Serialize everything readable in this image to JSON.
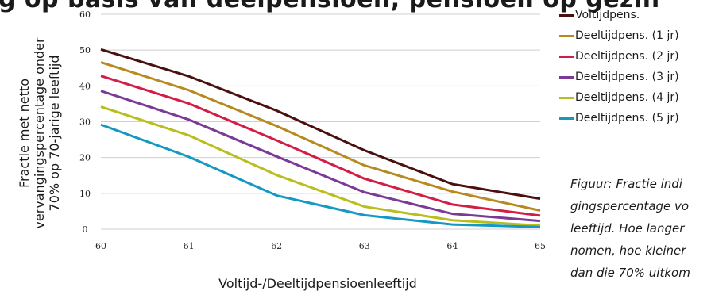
{
  "title": "g op basis van deelpensioen, pensioen op gezin",
  "chart_data": {
    "type": "line",
    "x": [
      60,
      61,
      62,
      63,
      64,
      65
    ],
    "xticks": [
      "60",
      "61",
      "62",
      "63",
      "64",
      "65"
    ],
    "yticks": [
      "0",
      "10",
      "20",
      "30",
      "40",
      "50",
      "60"
    ],
    "ylim": [
      0,
      60
    ],
    "xlim": [
      60,
      65
    ],
    "grid": "horizontal",
    "xlabel": "Voltijd-/Deeltijdpensioenleeftijd",
    "ylabel_lines": [
      "Fractie met netto",
      "vervangingspercentage onder",
      "70% op 70-jarige leeftijd"
    ],
    "legend_position": "right",
    "series": [
      {
        "name": "Voltijdpens.",
        "color": "#4a0f0f",
        "values": [
          50.2,
          42.7,
          33.1,
          22.0,
          12.6,
          8.5
        ]
      },
      {
        "name": "Deeltijdpens. (1 jr)",
        "color": "#b8891e",
        "values": [
          46.6,
          38.8,
          28.8,
          17.8,
          10.5,
          5.2
        ]
      },
      {
        "name": "Deeltijdpens. (2 jr)",
        "color": "#d41d45",
        "values": [
          42.8,
          35.1,
          24.8,
          14.1,
          6.9,
          3.8
        ]
      },
      {
        "name": "Deeltijdpens. (3 jr)",
        "color": "#7b3a96",
        "values": [
          38.6,
          30.6,
          20.3,
          10.3,
          4.3,
          2.3
        ]
      },
      {
        "name": "Deeltijdpens. (4 jr)",
        "color": "#b8be1c",
        "values": [
          34.2,
          26.2,
          15.1,
          6.3,
          2.5,
          1.0
        ]
      },
      {
        "name": "Deeltijdpens. (5 jr)",
        "color": "#1598c2",
        "values": [
          29.2,
          20.2,
          9.4,
          3.9,
          1.3,
          0.6
        ]
      }
    ]
  },
  "caption_lines": [
    "Figuur: Fractie indi",
    "gingspercentage vo",
    "leeftijd. Hoe langer",
    "nomen, hoe kleiner",
    "dan die 70% uitkom"
  ]
}
